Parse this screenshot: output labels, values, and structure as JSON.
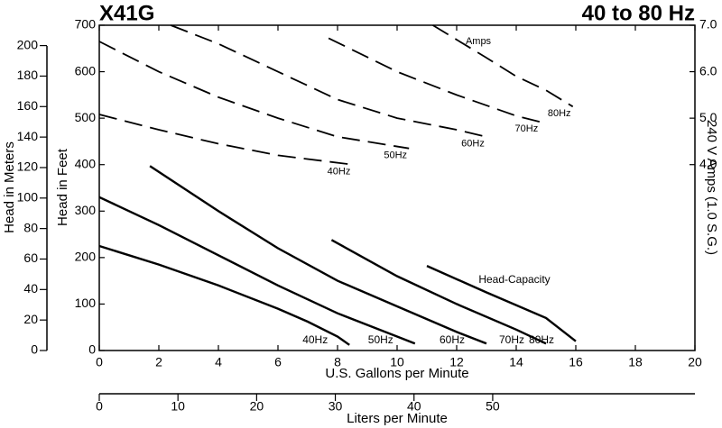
{
  "chart_data": {
    "type": "line",
    "title": "X41G",
    "subtitle": "40 to 80 Hz",
    "x_label": "U.S. Gallons per Minute",
    "x2_label": "Liters per Minute",
    "y_label": "Head in Feet",
    "y_meters_label": "Head in Meters",
    "y2_label": "240 V Amps (1.0 S.G.)",
    "annotations": [
      "Amps",
      "Head-Capacity"
    ],
    "xlim": [
      0,
      20
    ],
    "xticks": [
      0,
      2,
      4,
      6,
      8,
      10,
      12,
      14,
      16,
      18,
      20
    ],
    "x2lim": [
      0,
      75.7
    ],
    "x2ticks": [
      0,
      10,
      20,
      30,
      40,
      50
    ],
    "ylim": [
      0,
      700
    ],
    "yticks": [
      0,
      100,
      200,
      300,
      400,
      500,
      600,
      700
    ],
    "ymlim": [
      0,
      213.36
    ],
    "ymticks": [
      0,
      20,
      40,
      60,
      80,
      100,
      120,
      140,
      160,
      180,
      200
    ],
    "y2lim": [
      0,
      7
    ],
    "y2ticks": [
      {
        "value": 4,
        "label": "4.0"
      },
      {
        "value": 5,
        "label": "5.0"
      },
      {
        "value": 6,
        "label": "6.0"
      },
      {
        "value": 7,
        "label": "7.0"
      }
    ],
    "series": [
      {
        "name": "40Hz",
        "color": "#000000",
        "style": "solid",
        "x": [
          0,
          2,
          4,
          6,
          7,
          8,
          8.4
        ],
        "values": [
          225,
          185,
          140,
          90,
          62,
          30,
          12
        ]
      },
      {
        "name": "50Hz",
        "color": "#000000",
        "style": "solid",
        "x": [
          0,
          2,
          4,
          6,
          8,
          10,
          10.6
        ],
        "values": [
          330,
          270,
          205,
          140,
          80,
          30,
          15
        ]
      },
      {
        "name": "60Hz",
        "color": "#000000",
        "style": "solid",
        "x": [
          1.7,
          4,
          6,
          8,
          10,
          12,
          13
        ],
        "values": [
          397,
          300,
          220,
          150,
          95,
          40,
          15
        ]
      },
      {
        "name": "70Hz",
        "color": "#000000",
        "style": "solid",
        "x": [
          7.8,
          10,
          12,
          14,
          15
        ],
        "values": [
          238,
          160,
          100,
          45,
          15
        ]
      },
      {
        "name": "80Hz",
        "color": "#000000",
        "style": "solid",
        "x": [
          11,
          13,
          15,
          16
        ],
        "values": [
          182,
          125,
          70,
          20
        ]
      },
      {
        "name": "40Hz",
        "color": "#000000",
        "style": "dashed",
        "axis": "y2",
        "x": [
          0,
          2,
          4,
          6,
          8.5
        ],
        "values": [
          5.08,
          4.75,
          4.45,
          4.2,
          4.0
        ]
      },
      {
        "name": "50Hz",
        "color": "#000000",
        "style": "dashed",
        "axis": "y2",
        "x": [
          0,
          2,
          4,
          6,
          8,
          10.4
        ],
        "values": [
          6.65,
          6.0,
          5.45,
          5.0,
          4.6,
          4.35
        ]
      },
      {
        "name": "60Hz",
        "color": "#000000",
        "style": "dashed",
        "axis": "y2",
        "x": [
          2.4,
          4,
          6,
          8,
          10,
          12,
          13
        ],
        "values": [
          7.0,
          6.6,
          6.0,
          5.4,
          5.0,
          4.75,
          4.6
        ]
      },
      {
        "name": "70Hz",
        "color": "#000000",
        "style": "dashed",
        "axis": "y2",
        "x": [
          7.7,
          10,
          12,
          14,
          14.8
        ],
        "values": [
          6.72,
          6.0,
          5.5,
          5.05,
          4.92
        ]
      },
      {
        "name": "80Hz",
        "color": "#000000",
        "style": "dashed",
        "axis": "y2",
        "x": [
          11.2,
          13,
          14,
          15,
          15.9
        ],
        "values": [
          7.0,
          6.3,
          5.9,
          5.6,
          5.25
        ]
      }
    ]
  }
}
